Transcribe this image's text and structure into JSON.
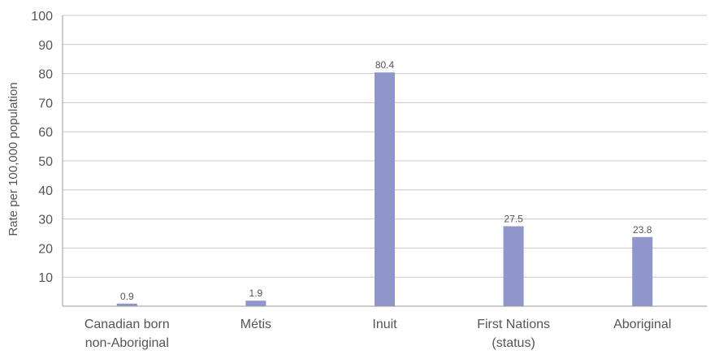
{
  "chart_data": {
    "type": "bar",
    "title": "",
    "xlabel": "",
    "ylabel": "Rate per 100,000 population",
    "categories": [
      [
        "Canadian born",
        "non-Aboriginal"
      ],
      [
        "Métis"
      ],
      [
        "Inuit"
      ],
      [
        "First Nations",
        "(status)"
      ],
      [
        "Aboriginal"
      ]
    ],
    "values": [
      0.9,
      1.9,
      80.4,
      27.5,
      23.8
    ],
    "data_labels": [
      "0.9",
      "1.9",
      "80.4",
      "27.5",
      "23.8"
    ],
    "y_ticks": [
      10,
      20,
      30,
      40,
      50,
      60,
      70,
      80,
      90,
      100
    ],
    "ylim": [
      0,
      100
    ],
    "grid": true,
    "legend": "none",
    "colors": {
      "bar": "#8f96cb",
      "grid": "#c8c8c8",
      "axis": "#9a9a9a",
      "text": "#555555"
    }
  }
}
